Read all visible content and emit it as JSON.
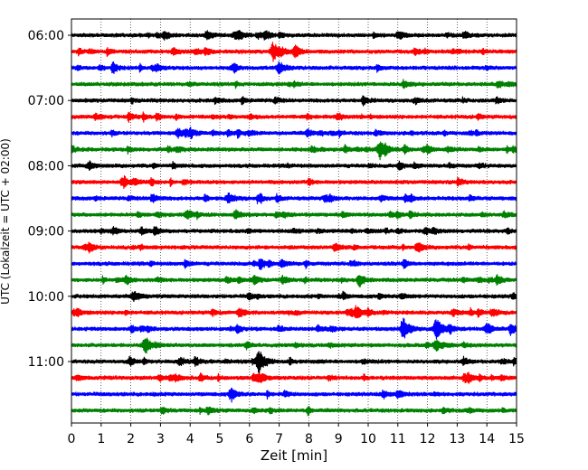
{
  "chart_data": {
    "type": "line",
    "title": "",
    "xlabel": "Zeit  [min]",
    "ylabel": "UTC (Lokalzeit = UTC + 02:00)",
    "xlim": [
      0,
      15
    ],
    "x_ticks": [
      "0",
      "1",
      "2",
      "3",
      "4",
      "5",
      "6",
      "7",
      "8",
      "9",
      "10",
      "11",
      "12",
      "13",
      "14",
      "15"
    ],
    "y_tick_labels": [
      "06:00",
      "07:00",
      "08:00",
      "09:00",
      "10:00",
      "11:00"
    ],
    "grid": "vertical dotted at each minute",
    "trace_interval_min": 15,
    "trace_count": 24,
    "trace_start": "06:00",
    "color_cycle": [
      "#000000",
      "#ff0000",
      "#0000ff",
      "#008000"
    ],
    "events": [
      {
        "trace": 1,
        "minute": 6.8,
        "amplitude": 1.0
      },
      {
        "trace": 2,
        "minute": 7.0,
        "amplitude": 0.6
      },
      {
        "trace": 6,
        "minute": 3.6,
        "amplitude": 0.5
      },
      {
        "trace": 7,
        "minute": 10.4,
        "amplitude": 1.1
      },
      {
        "trace": 10,
        "minute": 5.3,
        "amplitude": 0.5
      },
      {
        "trace": 11,
        "minute": 3.9,
        "amplitude": 0.45
      },
      {
        "trace": 16,
        "minute": 2.1,
        "amplitude": 0.55
      },
      {
        "trace": 18,
        "minute": 11.2,
        "amplitude": 1.1
      },
      {
        "trace": 18,
        "minute": 12.3,
        "amplitude": 1.3
      },
      {
        "trace": 19,
        "minute": 12.3,
        "amplitude": 0.6
      },
      {
        "trace": 20,
        "minute": 6.3,
        "amplitude": 1.0
      },
      {
        "trace": 21,
        "minute": 6.3,
        "amplitude": 0.5
      }
    ]
  }
}
